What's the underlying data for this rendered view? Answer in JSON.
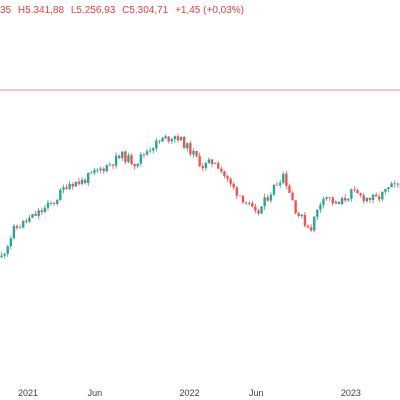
{
  "header": {
    "open_fragment": "35",
    "high": "H5.341,88",
    "low": "L5.256,93",
    "close": "C5.304,71",
    "change": "+1,45 (+0,03%)"
  },
  "colors": {
    "up": "#26a69a",
    "down": "#ef5350",
    "price_line": "#f28b8b",
    "axis_text": "#3a3e4a",
    "background": "#ffffff"
  },
  "chart_data": {
    "type": "candlestick",
    "x_ticks": [
      "2021",
      "Jun",
      "2022",
      "Jun",
      "2023"
    ],
    "current_price_line": 5304.71,
    "grid": false,
    "path": [
      {
        "date": "2020-11-01",
        "value": 3270
      },
      {
        "date": "2020-12-01",
        "value": 3620
      },
      {
        "date": "2021-01-01",
        "value": 3730
      },
      {
        "date": "2021-02-01",
        "value": 3840
      },
      {
        "date": "2021-03-01",
        "value": 3950
      },
      {
        "date": "2021-04-01",
        "value": 4180
      },
      {
        "date": "2021-05-01",
        "value": 4190
      },
      {
        "date": "2021-06-01",
        "value": 4300
      },
      {
        "date": "2021-07-01",
        "value": 4400
      },
      {
        "date": "2021-08-01",
        "value": 4510
      },
      {
        "date": "2021-09-01",
        "value": 4420
      },
      {
        "date": "2021-10-01",
        "value": 4600
      },
      {
        "date": "2021-11-01",
        "value": 4700
      },
      {
        "date": "2021-12-01",
        "value": 4760
      },
      {
        "date": "2022-01-01",
        "value": 4580
      },
      {
        "date": "2022-02-01",
        "value": 4380
      },
      {
        "date": "2022-03-01",
        "value": 4450
      },
      {
        "date": "2022-04-01",
        "value": 4170
      },
      {
        "date": "2022-05-01",
        "value": 4000
      },
      {
        "date": "2022-06-01",
        "value": 3780
      },
      {
        "date": "2022-07-01",
        "value": 4050
      },
      {
        "date": "2022-08-01",
        "value": 4290
      },
      {
        "date": "2022-09-01",
        "value": 3820
      },
      {
        "date": "2022-10-01",
        "value": 3620
      },
      {
        "date": "2022-11-01",
        "value": 4050
      },
      {
        "date": "2022-12-01",
        "value": 3900
      },
      {
        "date": "2023-01-01",
        "value": 4060
      },
      {
        "date": "2023-02-01",
        "value": 4000
      },
      {
        "date": "2023-03-01",
        "value": 3980
      },
      {
        "date": "2023-04-01",
        "value": 4130
      }
    ]
  }
}
